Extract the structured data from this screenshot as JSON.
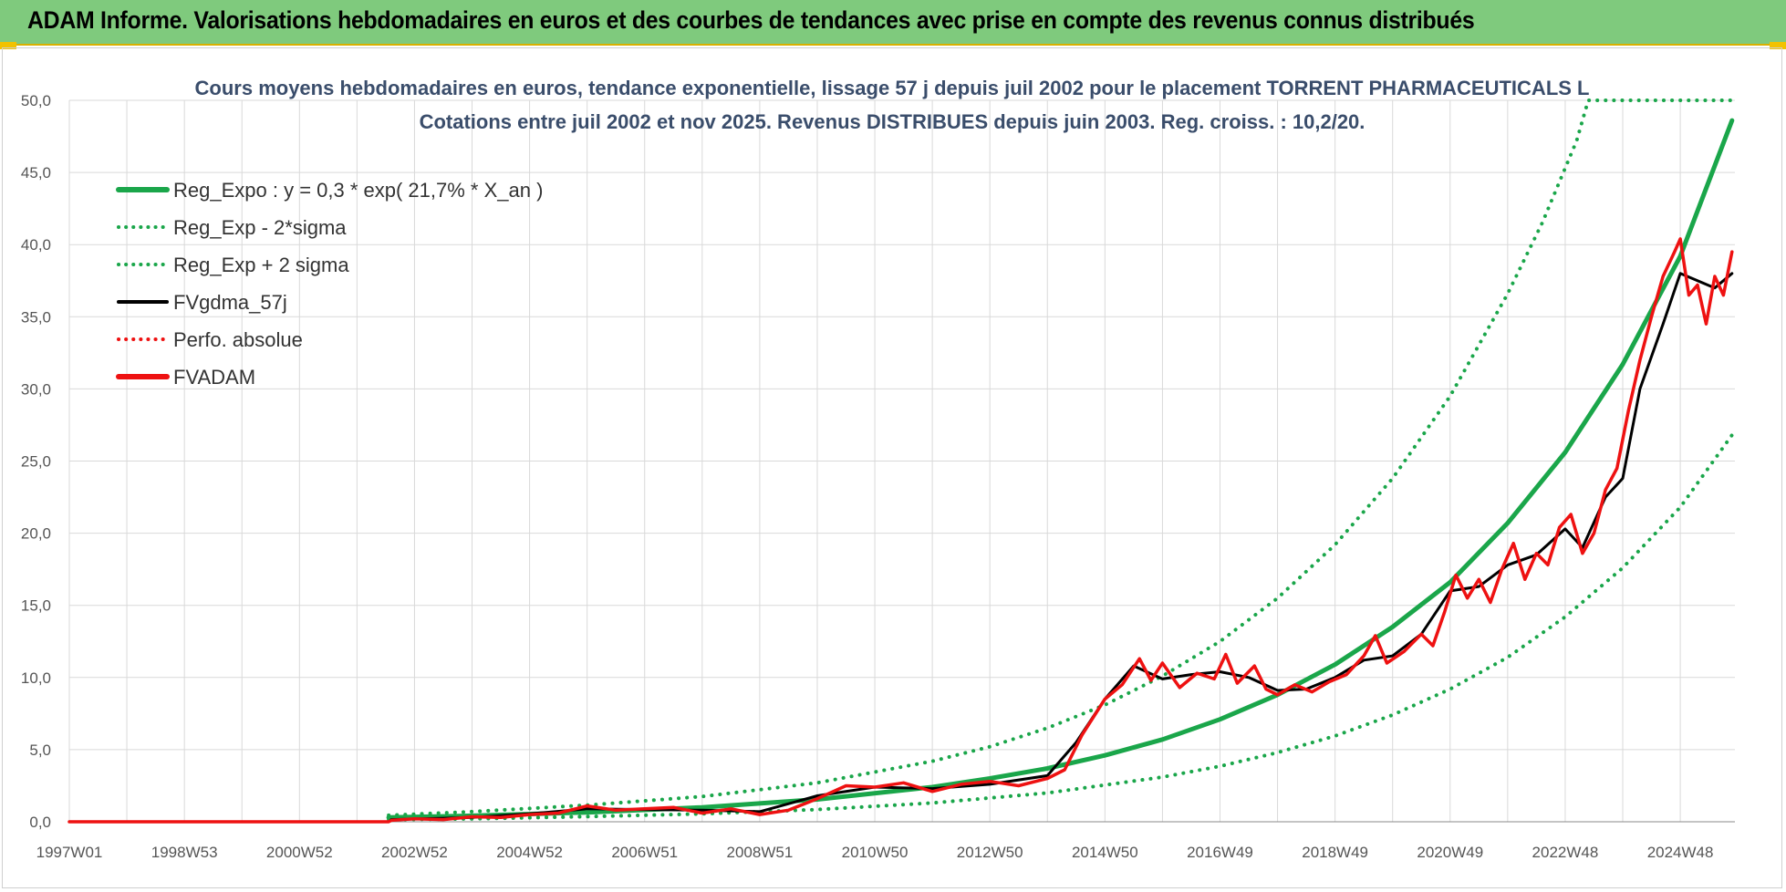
{
  "header": {
    "title": "ADAM Informe. Valorisations hebdomadaires en euros et des courbes de tendances avec prise en compte des revenus connus distribués"
  },
  "colors": {
    "header_bg": "#7fca7d",
    "green": "#1aa64a",
    "red": "#ee1111",
    "black": "#000000",
    "grid": "#d9d9d9"
  },
  "chart_data": {
    "type": "line",
    "title": "Cours moyens hebdomadaires en euros, tendance exponentielle, lissage 57 j depuis juil 2002 pour le placement TORRENT PHARMACEUTICALS L",
    "subtitle": "Cotations entre juil 2002 et nov 2025. Revenus DISTRIBUES depuis juin 2003. Reg. croiss. : 10,2/20.",
    "xlabel": "",
    "ylabel": "",
    "ylim": [
      0,
      50
    ],
    "xlim": [
      1997.0,
      2025.95
    ],
    "grid": true,
    "legend_position": "top-left",
    "y_ticks": [
      "0,0",
      "5,0",
      "10,0",
      "15,0",
      "20,0",
      "25,0",
      "30,0",
      "35,0",
      "40,0",
      "45,0",
      "50,0"
    ],
    "x_ticks": [
      {
        "label": "1997W01",
        "x": 1997.0
      },
      {
        "label": "1998W53",
        "x": 1999.0
      },
      {
        "label": "2000W52",
        "x": 2001.0
      },
      {
        "label": "2002W52",
        "x": 2003.0
      },
      {
        "label": "2004W52",
        "x": 2005.0
      },
      {
        "label": "2006W51",
        "x": 2007.0
      },
      {
        "label": "2008W51",
        "x": 2009.0
      },
      {
        "label": "2010W50",
        "x": 2011.0
      },
      {
        "label": "2012W50",
        "x": 2013.0
      },
      {
        "label": "2014W50",
        "x": 2015.0
      },
      {
        "label": "2016W49",
        "x": 2017.0
      },
      {
        "label": "2018W49",
        "x": 2019.0
      },
      {
        "label": "2020W49",
        "x": 2021.0
      },
      {
        "label": "2022W48",
        "x": 2023.0
      },
      {
        "label": "2024W48",
        "x": 2025.0
      }
    ],
    "series": [
      {
        "name": "Reg_Expo : y = 0,3 * exp( 21,7% *  X_an )",
        "style": "solid",
        "color": "#1aa64a",
        "points": [
          [
            2002.55,
            0.3
          ],
          [
            2004,
            0.42
          ],
          [
            2006,
            0.65
          ],
          [
            2008,
            1.0
          ],
          [
            2010,
            1.55
          ],
          [
            2012,
            2.4
          ],
          [
            2013,
            3.0
          ],
          [
            2014,
            3.7
          ],
          [
            2015,
            4.6
          ],
          [
            2016,
            5.7
          ],
          [
            2017,
            7.1
          ],
          [
            2018,
            8.8
          ],
          [
            2019,
            10.9
          ],
          [
            2020,
            13.5
          ],
          [
            2021,
            16.6
          ],
          [
            2022,
            20.7
          ],
          [
            2023,
            25.6
          ],
          [
            2024,
            31.7
          ],
          [
            2025,
            39.2
          ],
          [
            2025.9,
            48.6
          ]
        ]
      },
      {
        "name": "Reg_Exp - 2*sigma",
        "style": "dotted",
        "color": "#1aa64a",
        "points": [
          [
            2002.55,
            0.15
          ],
          [
            2004,
            0.2
          ],
          [
            2006,
            0.36
          ],
          [
            2008,
            0.55
          ],
          [
            2010,
            0.85
          ],
          [
            2012,
            1.3
          ],
          [
            2014,
            2.0
          ],
          [
            2016,
            3.1
          ],
          [
            2017,
            3.85
          ],
          [
            2018,
            4.8
          ],
          [
            2019,
            5.95
          ],
          [
            2020,
            7.4
          ],
          [
            2021,
            9.2
          ],
          [
            2022,
            11.4
          ],
          [
            2023,
            14.2
          ],
          [
            2024,
            17.6
          ],
          [
            2025,
            21.8
          ],
          [
            2025.9,
            26.8
          ]
        ]
      },
      {
        "name": "Reg_Exp + 2 sigma",
        "style": "dotted",
        "color": "#1aa64a",
        "points": [
          [
            2002.55,
            0.45
          ],
          [
            2004,
            0.7
          ],
          [
            2006,
            1.15
          ],
          [
            2008,
            1.75
          ],
          [
            2010,
            2.7
          ],
          [
            2012,
            4.2
          ],
          [
            2013,
            5.2
          ],
          [
            2014,
            6.5
          ],
          [
            2015,
            8.1
          ],
          [
            2016,
            10.1
          ],
          [
            2017,
            12.5
          ],
          [
            2018,
            15.5
          ],
          [
            2019,
            19.2
          ],
          [
            2020,
            23.8
          ],
          [
            2021,
            29.5
          ],
          [
            2022,
            36.6
          ],
          [
            2022.6,
            41.5
          ],
          [
            2023.2,
            47.2
          ],
          [
            2023.4,
            50.0
          ],
          [
            2025.9,
            50.0
          ]
        ]
      },
      {
        "name": "FVgdma_57j",
        "style": "solid",
        "color": "#000000",
        "points": [
          [
            1997,
            0
          ],
          [
            2002.55,
            0
          ],
          [
            2002.6,
            0.15
          ],
          [
            2004,
            0.3
          ],
          [
            2005,
            0.55
          ],
          [
            2006,
            0.9
          ],
          [
            2007,
            0.85
          ],
          [
            2008,
            0.8
          ],
          [
            2009,
            0.7
          ],
          [
            2010,
            1.8
          ],
          [
            2011,
            2.4
          ],
          [
            2012,
            2.3
          ],
          [
            2013,
            2.6
          ],
          [
            2014,
            3.2
          ],
          [
            2014.5,
            5.5
          ],
          [
            2015,
            8.5
          ],
          [
            2015.5,
            10.8
          ],
          [
            2016,
            9.9
          ],
          [
            2016.5,
            10.2
          ],
          [
            2017,
            10.4
          ],
          [
            2017.5,
            10.0
          ],
          [
            2018,
            9.1
          ],
          [
            2018.5,
            9.2
          ],
          [
            2019,
            10.0
          ],
          [
            2019.5,
            11.2
          ],
          [
            2020,
            11.5
          ],
          [
            2020.5,
            13.0
          ],
          [
            2021,
            16.0
          ],
          [
            2021.5,
            16.3
          ],
          [
            2022,
            17.8
          ],
          [
            2022.5,
            18.5
          ],
          [
            2023,
            20.3
          ],
          [
            2023.3,
            19.0
          ],
          [
            2023.7,
            22.5
          ],
          [
            2024,
            23.8
          ],
          [
            2024.3,
            30.0
          ],
          [
            2024.7,
            34.5
          ],
          [
            2025,
            38.0
          ],
          [
            2025.3,
            37.5
          ],
          [
            2025.6,
            37.0
          ],
          [
            2025.9,
            38.0
          ]
        ]
      },
      {
        "name": "Perfo. absolue",
        "style": "dotted",
        "color": "#ee1111",
        "points": []
      },
      {
        "name": "FVADAM",
        "style": "solid",
        "color": "#ee1111",
        "points": [
          [
            1997,
            0
          ],
          [
            2002.55,
            0
          ],
          [
            2002.6,
            0.1
          ],
          [
            2003,
            0.2
          ],
          [
            2003.5,
            0.15
          ],
          [
            2004,
            0.35
          ],
          [
            2004.5,
            0.3
          ],
          [
            2005,
            0.5
          ],
          [
            2005.5,
            0.6
          ],
          [
            2006,
            1.1
          ],
          [
            2006.5,
            0.8
          ],
          [
            2007,
            0.9
          ],
          [
            2007.5,
            1.0
          ],
          [
            2008,
            0.6
          ],
          [
            2008.5,
            0.9
          ],
          [
            2009,
            0.5
          ],
          [
            2009.5,
            0.8
          ],
          [
            2010,
            1.6
          ],
          [
            2010.5,
            2.5
          ],
          [
            2011,
            2.4
          ],
          [
            2011.5,
            2.7
          ],
          [
            2012,
            2.1
          ],
          [
            2012.5,
            2.6
          ],
          [
            2013,
            2.8
          ],
          [
            2013.5,
            2.5
          ],
          [
            2014,
            3.0
          ],
          [
            2014.3,
            3.6
          ],
          [
            2014.6,
            6.0
          ],
          [
            2015,
            8.5
          ],
          [
            2015.3,
            9.5
          ],
          [
            2015.6,
            11.3
          ],
          [
            2015.8,
            9.8
          ],
          [
            2016,
            11.0
          ],
          [
            2016.3,
            9.3
          ],
          [
            2016.6,
            10.3
          ],
          [
            2016.9,
            9.9
          ],
          [
            2017.1,
            11.6
          ],
          [
            2017.3,
            9.6
          ],
          [
            2017.6,
            10.8
          ],
          [
            2017.8,
            9.2
          ],
          [
            2018,
            8.8
          ],
          [
            2018.3,
            9.5
          ],
          [
            2018.6,
            9.0
          ],
          [
            2018.9,
            9.7
          ],
          [
            2019.2,
            10.2
          ],
          [
            2019.5,
            11.5
          ],
          [
            2019.7,
            12.9
          ],
          [
            2019.9,
            11.0
          ],
          [
            2020.2,
            11.8
          ],
          [
            2020.5,
            13.0
          ],
          [
            2020.7,
            12.2
          ],
          [
            2020.9,
            14.5
          ],
          [
            2021.1,
            17.1
          ],
          [
            2021.3,
            15.5
          ],
          [
            2021.5,
            16.8
          ],
          [
            2021.7,
            15.2
          ],
          [
            2021.9,
            17.5
          ],
          [
            2022.1,
            19.3
          ],
          [
            2022.3,
            16.8
          ],
          [
            2022.5,
            18.6
          ],
          [
            2022.7,
            17.8
          ],
          [
            2022.9,
            20.4
          ],
          [
            2023.1,
            21.3
          ],
          [
            2023.3,
            18.6
          ],
          [
            2023.5,
            20.0
          ],
          [
            2023.7,
            23.0
          ],
          [
            2023.9,
            24.5
          ],
          [
            2024.1,
            28.5
          ],
          [
            2024.3,
            32.0
          ],
          [
            2024.5,
            35.0
          ],
          [
            2024.7,
            37.8
          ],
          [
            2024.9,
            39.5
          ],
          [
            2025,
            40.4
          ],
          [
            2025.15,
            36.5
          ],
          [
            2025.3,
            37.2
          ],
          [
            2025.45,
            34.5
          ],
          [
            2025.6,
            37.8
          ],
          [
            2025.75,
            36.5
          ],
          [
            2025.9,
            39.5
          ]
        ]
      }
    ]
  }
}
